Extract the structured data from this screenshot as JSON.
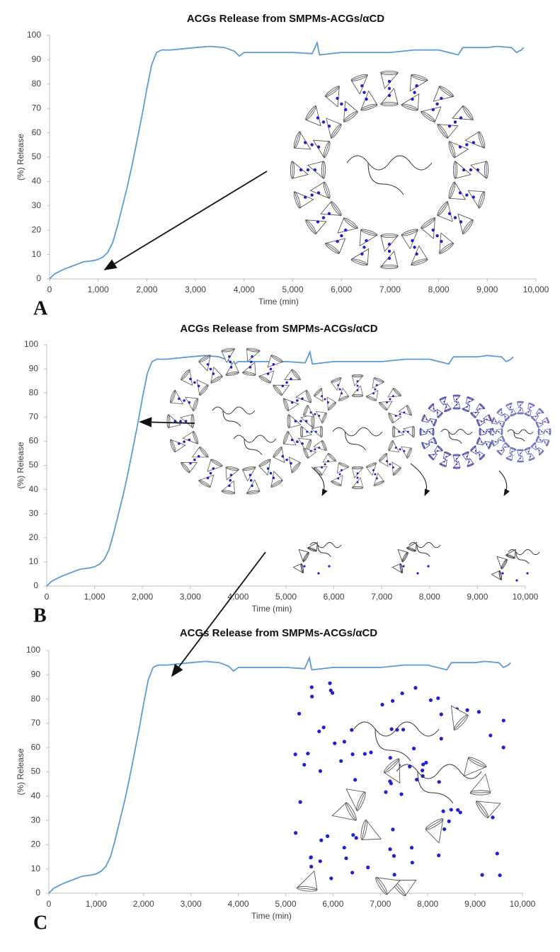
{
  "chart_data": [
    {
      "type": "line",
      "title": "ACGs Release from SMPMs-ACGs/αCD",
      "panel_label": "A",
      "x_label": "Time (min)",
      "y_label": "(%) Release",
      "x": [
        0,
        100,
        300,
        500,
        700,
        900,
        1000,
        1100,
        1200,
        1300,
        1400,
        1500,
        1600,
        1700,
        1800,
        1900,
        2000,
        2100,
        2200,
        2300,
        2500,
        3000,
        3300,
        3600,
        3800,
        3900,
        4000,
        4200,
        4500,
        5000,
        5400,
        5500,
        5550,
        6000,
        6500,
        7000,
        7500,
        8000,
        8400,
        8500,
        9000,
        9200,
        9500,
        9600,
        9700,
        9750
      ],
      "y": [
        0,
        2,
        4,
        5.5,
        7,
        7.5,
        8,
        9,
        11,
        15,
        22,
        30,
        38,
        47,
        57,
        67,
        78,
        88,
        93,
        94,
        94,
        95,
        95.5,
        95,
        93.5,
        91.5,
        93,
        93,
        93,
        93,
        92.5,
        97,
        92,
        93,
        93,
        93,
        94,
        94,
        92,
        95,
        95,
        95.5,
        95,
        93,
        94,
        95
      ],
      "color": "#5b9bd5",
      "xlim": [
        0,
        10000
      ],
      "ylim": [
        0,
        100
      ],
      "xticks": [
        0,
        {
          "value": 1000,
          "label": "1,000"
        },
        {
          "value": 2000,
          "label": "2,000"
        },
        {
          "value": 3000,
          "label": "3,000"
        },
        {
          "value": 4000,
          "label": "4,000"
        },
        {
          "value": 5000,
          "label": "5,000"
        },
        {
          "value": 6000,
          "label": "6,000"
        },
        {
          "value": 7000,
          "label": "7,000"
        },
        {
          "value": 8000,
          "label": "8,000"
        },
        {
          "value": 9000,
          "label": "9,000"
        },
        {
          "value": 10000,
          "label": "10,000"
        }
      ],
      "yticks": [
        0,
        10,
        20,
        30,
        40,
        50,
        60,
        70,
        80,
        90,
        100
      ]
    },
    {
      "type": "line",
      "title": "ACGs Release from SMPMs-ACGs/αCD",
      "panel_label": "B",
      "x_label": "Time (min)",
      "y_label": "(%) Release",
      "x": [
        0,
        100,
        300,
        500,
        700,
        900,
        1000,
        1100,
        1200,
        1300,
        1400,
        1500,
        1600,
        1700,
        1800,
        1900,
        2000,
        2100,
        2200,
        2300,
        2500,
        3000,
        3300,
        3600,
        3800,
        3900,
        4000,
        4200,
        4500,
        5000,
        5400,
        5500,
        5550,
        6000,
        6500,
        7000,
        7500,
        8000,
        8400,
        8500,
        9000,
        9200,
        9500,
        9600,
        9700,
        9750
      ],
      "y": [
        0,
        2,
        4,
        5.5,
        7,
        7.5,
        8,
        9,
        11,
        15,
        22,
        30,
        38,
        47,
        57,
        67,
        78,
        88,
        93,
        94,
        94,
        95,
        95.5,
        95,
        93.5,
        91.5,
        93,
        93,
        93,
        93,
        92.5,
        97,
        92,
        93,
        93,
        93,
        94,
        94,
        92,
        95,
        95,
        95.5,
        95,
        93,
        94,
        95
      ],
      "color": "#5b9bd5",
      "xlim": [
        0,
        10000
      ],
      "ylim": [
        0,
        100
      ],
      "xticks": [
        0,
        {
          "value": 1000,
          "label": "1,000"
        },
        {
          "value": 2000,
          "label": "2,000"
        },
        {
          "value": 3000,
          "label": "3,000"
        },
        {
          "value": 4000,
          "label": "4,000"
        },
        {
          "value": 5000,
          "label": "5,000"
        },
        {
          "value": 6000,
          "label": "6,000"
        },
        {
          "value": 7000,
          "label": "7,000"
        },
        {
          "value": 8000,
          "label": "8,000"
        },
        {
          "value": 9000,
          "label": "9,000"
        },
        {
          "value": 10000,
          "label": "10,000"
        }
      ],
      "yticks": [
        0,
        10,
        20,
        30,
        40,
        50,
        60,
        70,
        80,
        90,
        100
      ]
    },
    {
      "type": "line",
      "title": "ACGs Release from SMPMs-ACGs/αCD",
      "panel_label": "C",
      "x_label": "Time (min)",
      "y_label": "(%) Release",
      "x": [
        0,
        100,
        300,
        500,
        700,
        900,
        1000,
        1100,
        1200,
        1300,
        1400,
        1500,
        1600,
        1700,
        1800,
        1900,
        2000,
        2100,
        2200,
        2300,
        2500,
        3000,
        3300,
        3600,
        3800,
        3900,
        4000,
        4200,
        4500,
        5000,
        5400,
        5500,
        5550,
        6000,
        6500,
        7000,
        7500,
        8000,
        8400,
        8500,
        9000,
        9200,
        9500,
        9600,
        9700,
        9750
      ],
      "y": [
        0,
        2,
        4,
        5.5,
        7,
        7.5,
        8,
        9,
        11,
        15,
        22,
        30,
        38,
        47,
        57,
        67,
        78,
        88,
        93,
        94,
        94,
        95,
        95.5,
        95,
        93.5,
        91.5,
        93,
        93,
        93,
        93,
        92.5,
        97,
        92,
        93,
        93,
        93,
        94,
        94,
        92,
        95,
        95,
        95.5,
        95,
        93,
        94,
        95
      ],
      "color": "#5b9bd5",
      "xlim": [
        0,
        10000
      ],
      "ylim": [
        0,
        100
      ],
      "xticks": [
        0,
        {
          "value": 1000,
          "label": "1,000"
        },
        {
          "value": 2000,
          "label": "2,000"
        },
        {
          "value": 3000,
          "label": "3,000"
        },
        {
          "value": 4000,
          "label": "4,000"
        },
        {
          "value": 5000,
          "label": "5,000"
        },
        {
          "value": 6000,
          "label": "6,000"
        },
        {
          "value": 7000,
          "label": "7,000"
        },
        {
          "value": 8000,
          "label": "8,000"
        },
        {
          "value": 9000,
          "label": "9,000"
        },
        {
          "value": 10000,
          "label": "10,000"
        }
      ],
      "yticks": [
        0,
        10,
        20,
        30,
        40,
        50,
        60,
        70,
        80,
        90,
        100
      ]
    }
  ]
}
